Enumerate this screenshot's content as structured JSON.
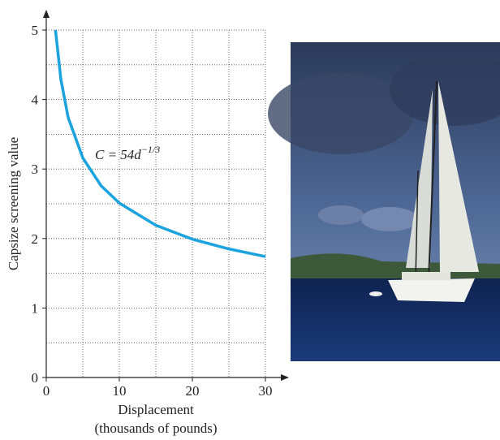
{
  "chart_data": {
    "type": "line",
    "xlabel": "Displacement",
    "xlabel_sub": "(thousands of pounds)",
    "ylabel": "Capsize screening value",
    "annotation": {
      "text": "C = 54d",
      "superscript": "−1/3"
    },
    "x": [
      1.26,
      2,
      3,
      5,
      7.5,
      10,
      15,
      20,
      25,
      30
    ],
    "series": [
      {
        "color": "#1aa3de",
        "values": [
          5.0,
          4.29,
          3.74,
          3.16,
          2.76,
          2.51,
          2.19,
          1.99,
          1.85,
          1.74
        ]
      }
    ],
    "xlim": [
      0,
      30
    ],
    "ylim": [
      0,
      5
    ],
    "xticks": [
      0,
      10,
      20,
      30
    ],
    "yticks": [
      0,
      1,
      2,
      3,
      4,
      5
    ],
    "xgrid": [
      5,
      10,
      15,
      20,
      25,
      30
    ],
    "ygrid": [
      0.5,
      1,
      1.5,
      2,
      2.5,
      3,
      3.5,
      4,
      4.5,
      5
    ],
    "grid": true
  }
}
